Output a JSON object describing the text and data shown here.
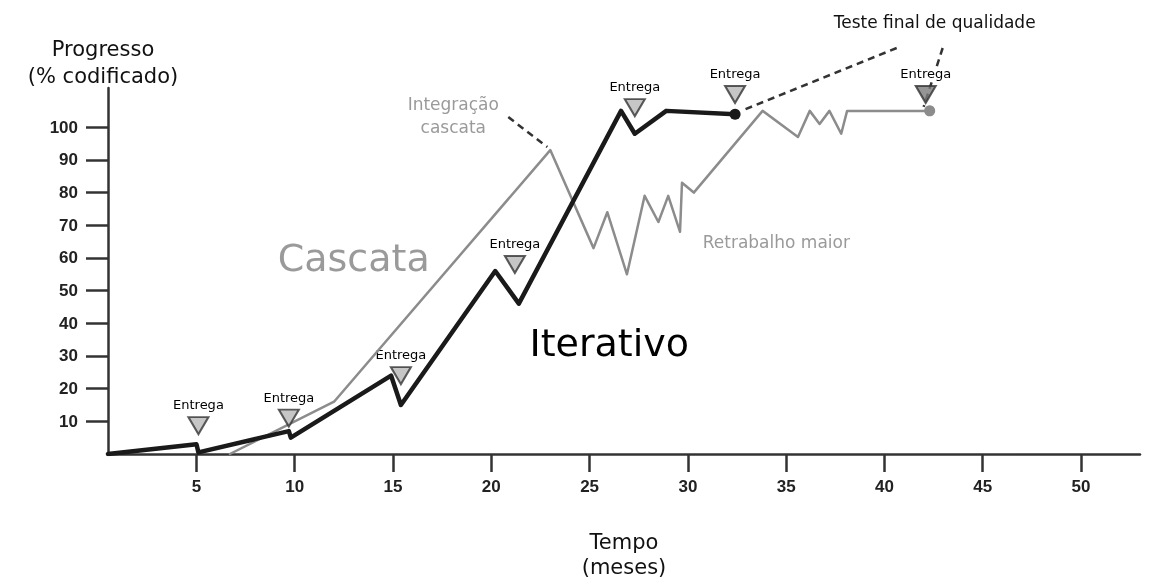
{
  "chart_data": {
    "type": "line",
    "xlabel": "Tempo\n(meses)",
    "ylabel": "Progresso\n(% codificado)",
    "xlim": [
      0.5,
      53
    ],
    "xticks": [
      5,
      10,
      15,
      20,
      25,
      30,
      35,
      40,
      45,
      50
    ],
    "ylim": [
      0,
      112
    ],
    "yticks": [
      10,
      20,
      30,
      40,
      50,
      60,
      70,
      80,
      90,
      100
    ],
    "grid": false,
    "legend": false,
    "marker": "none",
    "series": [
      {
        "name": "Cascata",
        "color": "#8c8c8c",
        "x": [
          6.7,
          12,
          23,
          25.2,
          25.9,
          26.9,
          27.8,
          28.5,
          29,
          29.6,
          29.7,
          30.3,
          33.8,
          35.6,
          36.2,
          36.7,
          37.2,
          37.8,
          38.1,
          42.3
        ],
        "values": [
          0,
          16,
          93,
          63,
          74,
          55,
          79,
          71,
          79,
          68,
          83,
          80,
          105,
          97,
          105,
          101,
          105,
          98,
          105,
          105
        ]
      },
      {
        "name": "Iterativo",
        "color": "#1a1a1a",
        "x": [
          0.5,
          5,
          5.1,
          9.7,
          9.8,
          14.9,
          15.4,
          20.2,
          21.4,
          26.6,
          27.3,
          28.9,
          32.4
        ],
        "values": [
          0,
          3,
          0.5,
          7,
          5,
          24,
          15,
          56,
          46,
          105,
          98,
          105,
          104
        ]
      },
      {
        "type": "scatter",
        "marker": "triangle",
        "x": [
          5.1,
          9.7,
          15.4,
          21.2,
          27.3,
          32.4,
          42.1
        ],
        "values": [
          8.7,
          11,
          24,
          58,
          106,
          110,
          110
        ],
        "colors": [
          "#b8b8b8",
          "#b8b8b8",
          "#b8b8b8",
          "#b8b8b8",
          "#b8b8b8",
          "#b8b8b8",
          "#7a7a7a"
        ]
      }
    ],
    "annotations": [
      {
        "text": "Integração\ncascata",
        "x": 23,
        "y": 93
      },
      "Retrabalho maior",
      {
        "text": "Teste final de qualidade",
        "x": 42.3,
        "y": 105
      },
      {
        "text": "Entrega",
        "x": 5.1,
        "y": 8.7
      },
      {
        "text": "Entrega",
        "x": 9.7,
        "y": 11
      },
      {
        "text": "Entrega",
        "x": 15.4,
        "y": 24
      },
      {
        "text": "Entrega",
        "x": 21.2,
        "y": 58
      },
      {
        "text": "Entrega",
        "x": 27.3,
        "y": 106
      },
      {
        "text": "Entrega",
        "x": 32.4,
        "y": 110
      },
      {
        "text": "Entrega",
        "x": 42.1,
        "y": 110
      }
    ]
  }
}
